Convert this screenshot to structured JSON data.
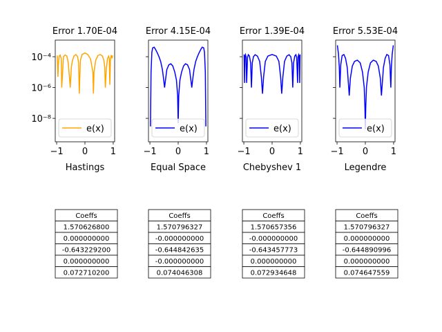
{
  "chart_data": [
    {
      "type": "line",
      "title": "Error 1.70E-04",
      "xlabel": "Hastings",
      "ylabel": "",
      "yscale": "log",
      "xlim": [
        -1.05,
        1.05
      ],
      "ylim": [
        3e-10,
        0.0012
      ],
      "xticks": [
        "−1",
        "0",
        "1"
      ],
      "yticks": [
        "10⁻⁴",
        "10⁻⁶",
        "10⁻⁸"
      ],
      "legend": "lower center",
      "color": "#ffa500",
      "series": [
        {
          "name": "e(x)",
          "x": [
            -0.98,
            -0.955,
            -0.94,
            -0.91,
            -0.88,
            -0.84,
            -0.82,
            -0.76,
            -0.7,
            -0.64,
            -0.59,
            -0.55,
            -0.52,
            -0.48,
            -0.45,
            -0.39,
            -0.32,
            -0.26,
            -0.225,
            -0.2,
            -0.16,
            -0.1,
            0.0,
            0.1,
            0.2,
            0.28,
            0.3,
            0.32,
            0.38,
            0.46,
            0.54,
            0.62,
            0.67,
            0.7,
            0.72,
            0.76,
            0.8,
            0.84,
            0.86,
            0.88,
            0.9,
            0.93,
            0.955,
            0.98
          ],
          "y": [
            0.00012,
            5e-06,
            3e-05,
            0.00011,
            0.00013,
            8e-05,
            1e-06,
            0.0001,
            0.00013,
            0.00011,
            4e-05,
            5e-06,
            1e-06,
            2e-05,
            5e-05,
            0.00011,
            0.00014,
            0.0001,
            4e-05,
            4e-07,
            6e-05,
            0.00014,
            0.000175,
            0.00014,
            7e-05,
            1e-05,
            4e-07,
            1e-05,
            6e-05,
            0.00012,
            0.00014,
            0.00011,
            6e-05,
            2e-05,
            1e-06,
            2e-05,
            8e-05,
            0.00011,
            8e-05,
            1.5e-06,
            6e-05,
            0.00013,
            8e-05,
            0.00012
          ]
        }
      ],
      "table": {
        "header": "Coeffs",
        "values": [
          "1.570626800",
          "0.000000000",
          "-0.643229200",
          "0.000000000",
          "0.072710200"
        ]
      }
    },
    {
      "type": "line",
      "title": "Error 4.15E-04",
      "xlabel": "Equal Space",
      "ylabel": "",
      "yscale": "log",
      "xlim": [
        -1.05,
        1.05
      ],
      "ylim": [
        3e-10,
        0.0012
      ],
      "xticks": [
        "−1",
        "0",
        "1"
      ],
      "yticks": [],
      "legend": "lower center",
      "color": "#0000ff",
      "series": [
        {
          "name": "e(x)",
          "x": [
            -0.98,
            -0.96,
            -0.93,
            -0.9,
            -0.85,
            -0.8,
            -0.74,
            -0.68,
            -0.62,
            -0.56,
            -0.51,
            -0.48,
            -0.45,
            -0.4,
            -0.33,
            -0.26,
            -0.19,
            -0.12,
            -0.06,
            -0.02,
            0.0,
            0.02,
            0.06,
            0.12,
            0.19,
            0.26,
            0.33,
            0.4,
            0.45,
            0.48,
            0.51,
            0.56,
            0.62,
            0.68,
            0.74,
            0.8,
            0.85,
            0.9,
            0.93,
            0.96,
            0.98
          ],
          "y": [
            3e-09,
            1e-05,
            0.0002,
            0.00038,
            0.00042,
            0.0003,
            0.00018,
            0.0001,
            5e-05,
            1.5e-05,
            3e-06,
            1e-06,
            3e-06,
            1.5e-05,
            3e-05,
            3.5e-05,
            2.5e-05,
            1e-05,
            3e-06,
            3e-07,
            5e-09,
            3e-07,
            3e-06,
            1e-05,
            2.5e-05,
            3.5e-05,
            3e-05,
            1.5e-05,
            3e-06,
            1e-06,
            3e-06,
            1.5e-05,
            5e-05,
            0.0001,
            0.00018,
            0.0003,
            0.00042,
            0.00038,
            0.0002,
            1e-05,
            3e-09
          ]
        }
      ],
      "table": {
        "header": "Coeffs",
        "values": [
          "1.570796327",
          "-0.000000000",
          "-0.644842635",
          "-0.000000000",
          "0.074046308"
        ]
      }
    },
    {
      "type": "line",
      "title": "Error 1.39E-04",
      "xlabel": "Chebyshev 1",
      "ylabel": "",
      "yscale": "log",
      "xlim": [
        -1.05,
        1.05
      ],
      "ylim": [
        3e-10,
        0.0012
      ],
      "xticks": [
        "−1",
        "0",
        "1"
      ],
      "yticks": [],
      "legend": "lower center",
      "color": "#0000ff",
      "series": [
        {
          "name": "e(x)",
          "x": [
            -0.99,
            -0.975,
            -0.96,
            -0.94,
            -0.92,
            -0.9,
            -0.87,
            -0.84,
            -0.8,
            -0.76,
            -0.73,
            -0.7,
            -0.66,
            -0.6,
            -0.52,
            -0.44,
            -0.38,
            -0.34,
            -0.3,
            -0.24,
            -0.15,
            0.0,
            0.15,
            0.24,
            0.3,
            0.34,
            0.38,
            0.44,
            0.52,
            0.6,
            0.66,
            0.7,
            0.73,
            0.76,
            0.8,
            0.84,
            0.87,
            0.9,
            0.92,
            0.94,
            0.96,
            0.975,
            0.99
          ],
          "y": [
            0.000139,
            2e-06,
            0.0001,
            0.000135,
            0.0001,
            2e-06,
            9e-05,
            0.000135,
            0.00011,
            4e-05,
            1e-06,
            4e-05,
            0.0001,
            0.000135,
            0.00011,
            5e-05,
            5e-06,
            4e-07,
            5e-06,
            5e-05,
            0.00011,
            0.000139,
            0.00011,
            5e-05,
            5e-06,
            4e-07,
            5e-06,
            5e-05,
            0.00011,
            0.000135,
            0.0001,
            4e-05,
            1e-06,
            4e-05,
            0.00011,
            0.000135,
            9e-05,
            2e-06,
            0.0001,
            0.000135,
            0.0001,
            2e-06,
            0.000139
          ]
        }
      ],
      "table": {
        "header": "Coeffs",
        "values": [
          "1.570657356",
          "-0.000000000",
          "-0.643457773",
          "0.000000000",
          "0.072934648"
        ]
      }
    },
    {
      "type": "line",
      "title": "Error 5.53E-04",
      "xlabel": "Legendre",
      "ylabel": "",
      "yscale": "log",
      "xlim": [
        -1.05,
        1.05
      ],
      "ylim": [
        3e-10,
        0.0012
      ],
      "xticks": [
        "−1",
        "0",
        "1"
      ],
      "yticks": [],
      "legend": "lower center",
      "color": "#0000ff",
      "series": [
        {
          "name": "e(x)",
          "x": [
            -0.99,
            -0.95,
            -0.92,
            -0.9,
            -0.87,
            -0.82,
            -0.76,
            -0.7,
            -0.64,
            -0.6,
            -0.57,
            -0.53,
            -0.46,
            -0.38,
            -0.28,
            -0.18,
            -0.1,
            -0.04,
            -0.015,
            0.0,
            0.015,
            0.04,
            0.1,
            0.18,
            0.28,
            0.38,
            0.46,
            0.53,
            0.57,
            0.6,
            0.64,
            0.7,
            0.76,
            0.82,
            0.87,
            0.9,
            0.92,
            0.95,
            0.99
          ],
          "y": [
            0.000553,
            0.00015,
            2e-05,
            1e-06,
            3e-05,
            0.00012,
            0.00014,
            8e-05,
            2e-05,
            2e-06,
            3e-07,
            4e-06,
            2.5e-05,
            5e-05,
            6e-05,
            4e-05,
            1e-05,
            1e-06,
            5e-08,
            2e-09,
            5e-08,
            1e-06,
            1e-05,
            4e-05,
            6e-05,
            5e-05,
            2.5e-05,
            4e-06,
            3e-07,
            2e-06,
            2e-05,
            8e-05,
            0.00014,
            0.00012,
            3e-05,
            1e-06,
            2e-05,
            0.00015,
            0.000553
          ]
        }
      ],
      "table": {
        "header": "Coeffs",
        "values": [
          "1.570796327",
          "0.000000000",
          "-0.644890996",
          "0.000000000",
          "0.074647559"
        ]
      }
    }
  ]
}
